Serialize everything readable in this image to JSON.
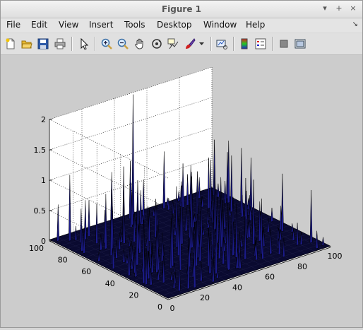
{
  "window": {
    "title": "Figure 1"
  },
  "menu": [
    "File",
    "Edit",
    "View",
    "Insert",
    "Tools",
    "Desktop",
    "Window",
    "Help"
  ],
  "window_buttons": [
    "▾",
    "+",
    "×"
  ],
  "dock_glyph": "↘",
  "toolbar_icons": [
    "new-figure-icon",
    "open-file-icon",
    "save-icon",
    "print-icon",
    "edit-plot-icon",
    "zoom-in-icon",
    "zoom-out-icon",
    "pan-icon",
    "rotate-3d-icon",
    "data-cursor-icon",
    "brush-icon",
    "brush-dropdown-icon",
    "link-plot-icon",
    "colorbar-icon",
    "legend-icon",
    "hide-plot-tools-icon",
    "show-plot-tools-icon"
  ],
  "chart_data": {
    "type": "surface",
    "z_ticks": [
      "0",
      "0.5",
      "1",
      "1.5",
      "2"
    ],
    "x_ticks": [
      "0",
      "20",
      "40",
      "60",
      "80",
      "100"
    ],
    "y_ticks": [
      "0",
      "20",
      "40",
      "60",
      "80",
      "100"
    ],
    "xlim": [
      0,
      100
    ],
    "ylim": [
      0,
      100
    ],
    "zlim": [
      0,
      2
    ],
    "grid": true,
    "surface_color": "#0a0a30",
    "spike_color": "#1b1b8a"
  }
}
